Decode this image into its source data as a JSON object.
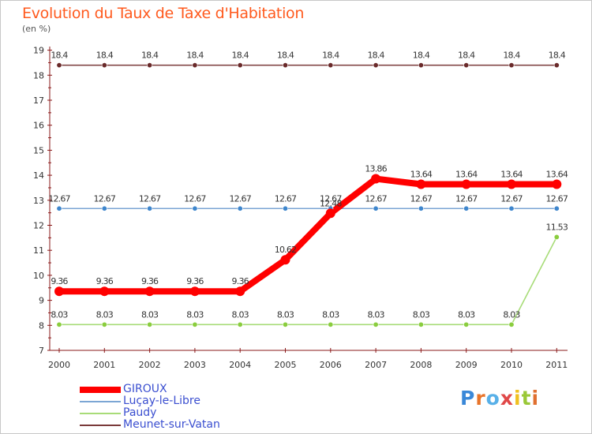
{
  "chart_data": {
    "type": "line",
    "title": "Evolution du Taux de Taxe d'Habitation",
    "subtitle": "(en %)",
    "xlabel": "",
    "ylabel": "",
    "ylim": [
      7,
      19
    ],
    "yticks": [
      "7",
      "8",
      "9",
      "10",
      "11",
      "12",
      "13",
      "14",
      "15",
      "16",
      "17",
      "18",
      "19"
    ],
    "x": [
      "2000",
      "2001",
      "2002",
      "2003",
      "2004",
      "2005",
      "2006",
      "2007",
      "2008",
      "2009",
      "2010",
      "2011"
    ],
    "grid": false,
    "legend_position": "bottom-left",
    "series": [
      {
        "name": "GIROUX",
        "color": "#ff0000",
        "marker": "#ff0000",
        "values": [
          9.36,
          9.36,
          9.36,
          9.36,
          9.36,
          10.62,
          12.48,
          13.86,
          13.64,
          13.64,
          13.64,
          13.64
        ],
        "labels": [
          "9.36",
          "9.36",
          "9.36",
          "9.36",
          "9.36",
          "10.62",
          "12.48",
          "13.86",
          "13.64",
          "13.64",
          "13.64",
          "13.64"
        ]
      },
      {
        "name": "Luçay-le-Libre",
        "color": "#7ca6d4",
        "marker": "#3e86cd",
        "values": [
          12.67,
          12.67,
          12.67,
          12.67,
          12.67,
          12.67,
          12.67,
          12.67,
          12.67,
          12.67,
          12.67,
          12.67
        ],
        "labels": [
          "12.67",
          "12.67",
          "12.67",
          "12.67",
          "12.67",
          "12.67",
          "12.67",
          "12.67",
          "12.67",
          "12.67",
          "12.67",
          "12.67"
        ]
      },
      {
        "name": "Paudy",
        "color": "#a8dc78",
        "marker": "#8acd3e",
        "values": [
          8.03,
          8.03,
          8.03,
          8.03,
          8.03,
          8.03,
          8.03,
          8.03,
          8.03,
          8.03,
          8.03,
          11.53
        ],
        "labels": [
          "8.03",
          "8.03",
          "8.03",
          "8.03",
          "8.03",
          "8.03",
          "8.03",
          "8.03",
          "8.03",
          "8.03",
          "8.03",
          "11.53"
        ]
      },
      {
        "name": "Meunet-sur-Vatan",
        "color": "#7a3a3a",
        "marker": "#6a2a2a",
        "values": [
          18.4,
          18.4,
          18.4,
          18.4,
          18.4,
          18.4,
          18.4,
          18.4,
          18.4,
          18.4,
          18.4,
          18.4
        ],
        "labels": [
          "18.4",
          "18.4",
          "18.4",
          "18.4",
          "18.4",
          "18.4",
          "18.4",
          "18.4",
          "18.4",
          "18.4",
          "18.4",
          "18.4"
        ]
      }
    ]
  },
  "brand": {
    "text": "Proxiti",
    "letter_colors": [
      "#3a88d8",
      "#e8742a",
      "#58b0e8",
      "#e04848",
      "#f0c020",
      "#9ac838",
      "#e07030"
    ]
  }
}
